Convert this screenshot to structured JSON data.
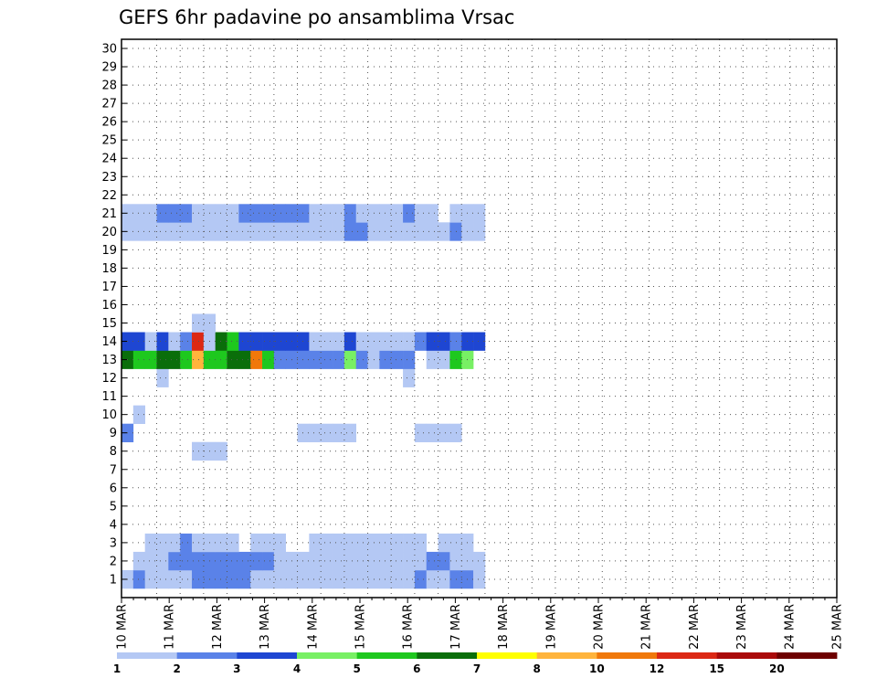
{
  "chart_data": {
    "type": "heatmap",
    "title": "GEFS 6hr padavine po ansamblima Vrsac",
    "xlabel": "",
    "ylabel": "",
    "x_tick_labels": [
      "10 MAR",
      "11 MAR",
      "12 MAR",
      "13 MAR",
      "14 MAR",
      "15 MAR",
      "16 MAR",
      "17 MAR",
      "18 MAR",
      "19 MAR",
      "20 MAR",
      "21 MAR",
      "22 MAR",
      "23 MAR",
      "24 MAR",
      "25 MAR"
    ],
    "y_tick_labels": [
      "1",
      "2",
      "3",
      "4",
      "5",
      "6",
      "7",
      "8",
      "9",
      "10",
      "11",
      "12",
      "13",
      "14",
      "15",
      "16",
      "17",
      "18",
      "19",
      "20",
      "21",
      "22",
      "23",
      "24",
      "25",
      "26",
      "27",
      "28",
      "29",
      "30"
    ],
    "time_steps": 61,
    "time_step_hours": 6,
    "members": 30,
    "colorbar": {
      "levels": [
        "1",
        "2",
        "3",
        "4",
        "5",
        "6",
        "7",
        "8",
        "10",
        "12",
        "15",
        "20"
      ],
      "colors": [
        "#b4c8f4",
        "#5a82e8",
        "#1e46d2",
        "#78f064",
        "#1ec81e",
        "#0a6e0a",
        "#ffff00",
        "#ffb43c",
        "#f0780a",
        "#dc2814",
        "#aa0a0a",
        "#6e0000"
      ]
    },
    "grid": true,
    "cells": [
      [
        0,
        1,
        0
      ],
      [
        1,
        1,
        1
      ],
      [
        2,
        1,
        0
      ],
      [
        3,
        1,
        0
      ],
      [
        4,
        1,
        0
      ],
      [
        5,
        1,
        0
      ],
      [
        6,
        1,
        1
      ],
      [
        7,
        1,
        1
      ],
      [
        8,
        1,
        1
      ],
      [
        9,
        1,
        1
      ],
      [
        10,
        1,
        1
      ],
      [
        11,
        1,
        0
      ],
      [
        12,
        1,
        0
      ],
      [
        13,
        1,
        0
      ],
      [
        14,
        1,
        0
      ],
      [
        15,
        1,
        0
      ],
      [
        16,
        1,
        0
      ],
      [
        17,
        1,
        0
      ],
      [
        18,
        1,
        0
      ],
      [
        19,
        1,
        0
      ],
      [
        20,
        1,
        0
      ],
      [
        21,
        1,
        0
      ],
      [
        22,
        1,
        0
      ],
      [
        23,
        1,
        0
      ],
      [
        24,
        1,
        0
      ],
      [
        25,
        1,
        1
      ],
      [
        26,
        1,
        0
      ],
      [
        27,
        1,
        0
      ],
      [
        28,
        1,
        1
      ],
      [
        29,
        1,
        1
      ],
      [
        30,
        1,
        0
      ],
      [
        1,
        2,
        0
      ],
      [
        2,
        2,
        0
      ],
      [
        3,
        2,
        0
      ],
      [
        4,
        2,
        1
      ],
      [
        5,
        2,
        1
      ],
      [
        6,
        2,
        1
      ],
      [
        7,
        2,
        1
      ],
      [
        8,
        2,
        1
      ],
      [
        9,
        2,
        1
      ],
      [
        10,
        2,
        1
      ],
      [
        11,
        2,
        1
      ],
      [
        12,
        2,
        1
      ],
      [
        13,
        2,
        0
      ],
      [
        14,
        2,
        0
      ],
      [
        15,
        2,
        0
      ],
      [
        16,
        2,
        0
      ],
      [
        17,
        2,
        0
      ],
      [
        18,
        2,
        0
      ],
      [
        19,
        2,
        0
      ],
      [
        20,
        2,
        0
      ],
      [
        21,
        2,
        0
      ],
      [
        22,
        2,
        0
      ],
      [
        23,
        2,
        0
      ],
      [
        24,
        2,
        0
      ],
      [
        25,
        2,
        0
      ],
      [
        26,
        2,
        1
      ],
      [
        27,
        2,
        1
      ],
      [
        28,
        2,
        0
      ],
      [
        29,
        2,
        0
      ],
      [
        30,
        2,
        0
      ],
      [
        2,
        3,
        0
      ],
      [
        3,
        3,
        0
      ],
      [
        4,
        3,
        0
      ],
      [
        5,
        3,
        1
      ],
      [
        6,
        3,
        0
      ],
      [
        7,
        3,
        0
      ],
      [
        8,
        3,
        0
      ],
      [
        9,
        3,
        0
      ],
      [
        11,
        3,
        0
      ],
      [
        12,
        3,
        0
      ],
      [
        13,
        3,
        0
      ],
      [
        16,
        3,
        0
      ],
      [
        17,
        3,
        0
      ],
      [
        18,
        3,
        0
      ],
      [
        19,
        3,
        0
      ],
      [
        20,
        3,
        0
      ],
      [
        21,
        3,
        0
      ],
      [
        22,
        3,
        0
      ],
      [
        23,
        3,
        0
      ],
      [
        24,
        3,
        0
      ],
      [
        25,
        3,
        0
      ],
      [
        27,
        3,
        0
      ],
      [
        28,
        3,
        0
      ],
      [
        29,
        3,
        0
      ],
      [
        6,
        8,
        0
      ],
      [
        7,
        8,
        0
      ],
      [
        8,
        8,
        0
      ],
      [
        0,
        9,
        1
      ],
      [
        15,
        9,
        0
      ],
      [
        16,
        9,
        0
      ],
      [
        17,
        9,
        0
      ],
      [
        18,
        9,
        0
      ],
      [
        19,
        9,
        0
      ],
      [
        25,
        9,
        0
      ],
      [
        26,
        9,
        0
      ],
      [
        27,
        9,
        0
      ],
      [
        28,
        9,
        0
      ],
      [
        1,
        10,
        0
      ],
      [
        3,
        12,
        0
      ],
      [
        24,
        12,
        0
      ],
      [
        0,
        13,
        5
      ],
      [
        1,
        13,
        4
      ],
      [
        2,
        13,
        4
      ],
      [
        3,
        13,
        5
      ],
      [
        4,
        13,
        5
      ],
      [
        5,
        13,
        4
      ],
      [
        6,
        13,
        7
      ],
      [
        7,
        13,
        4
      ],
      [
        8,
        13,
        4
      ],
      [
        9,
        13,
        5
      ],
      [
        10,
        13,
        5
      ],
      [
        11,
        13,
        8
      ],
      [
        12,
        13,
        4
      ],
      [
        13,
        13,
        1
      ],
      [
        14,
        13,
        1
      ],
      [
        15,
        13,
        1
      ],
      [
        16,
        13,
        1
      ],
      [
        17,
        13,
        1
      ],
      [
        18,
        13,
        1
      ],
      [
        19,
        13,
        3
      ],
      [
        20,
        13,
        1
      ],
      [
        21,
        13,
        0
      ],
      [
        22,
        13,
        1
      ],
      [
        23,
        13,
        1
      ],
      [
        24,
        13,
        1
      ],
      [
        26,
        13,
        0
      ],
      [
        27,
        13,
        0
      ],
      [
        28,
        13,
        4
      ],
      [
        29,
        13,
        3
      ],
      [
        0,
        14,
        2
      ],
      [
        1,
        14,
        2
      ],
      [
        2,
        14,
        0
      ],
      [
        3,
        14,
        2
      ],
      [
        4,
        14,
        0
      ],
      [
        5,
        14,
        1
      ],
      [
        6,
        14,
        9
      ],
      [
        7,
        14,
        0
      ],
      [
        8,
        14,
        5
      ],
      [
        9,
        14,
        4
      ],
      [
        10,
        14,
        2
      ],
      [
        11,
        14,
        2
      ],
      [
        12,
        14,
        2
      ],
      [
        13,
        14,
        2
      ],
      [
        14,
        14,
        2
      ],
      [
        15,
        14,
        2
      ],
      [
        16,
        14,
        0
      ],
      [
        17,
        14,
        0
      ],
      [
        18,
        14,
        0
      ],
      [
        19,
        14,
        2
      ],
      [
        20,
        14,
        0
      ],
      [
        21,
        14,
        0
      ],
      [
        22,
        14,
        0
      ],
      [
        23,
        14,
        0
      ],
      [
        24,
        14,
        0
      ],
      [
        25,
        14,
        1
      ],
      [
        26,
        14,
        2
      ],
      [
        27,
        14,
        2
      ],
      [
        28,
        14,
        1
      ],
      [
        29,
        14,
        2
      ],
      [
        30,
        14,
        2
      ],
      [
        6,
        15,
        0
      ],
      [
        7,
        15,
        0
      ],
      [
        0,
        20,
        0
      ],
      [
        1,
        20,
        0
      ],
      [
        2,
        20,
        0
      ],
      [
        3,
        20,
        0
      ],
      [
        4,
        20,
        0
      ],
      [
        5,
        20,
        0
      ],
      [
        6,
        20,
        0
      ],
      [
        7,
        20,
        0
      ],
      [
        8,
        20,
        0
      ],
      [
        9,
        20,
        0
      ],
      [
        10,
        20,
        0
      ],
      [
        11,
        20,
        0
      ],
      [
        12,
        20,
        0
      ],
      [
        13,
        20,
        0
      ],
      [
        14,
        20,
        0
      ],
      [
        15,
        20,
        0
      ],
      [
        16,
        20,
        0
      ],
      [
        17,
        20,
        0
      ],
      [
        18,
        20,
        0
      ],
      [
        19,
        20,
        1
      ],
      [
        20,
        20,
        1
      ],
      [
        21,
        20,
        0
      ],
      [
        22,
        20,
        0
      ],
      [
        23,
        20,
        0
      ],
      [
        24,
        20,
        0
      ],
      [
        25,
        20,
        0
      ],
      [
        26,
        20,
        0
      ],
      [
        27,
        20,
        0
      ],
      [
        28,
        20,
        1
      ],
      [
        29,
        20,
        0
      ],
      [
        30,
        20,
        0
      ],
      [
        0,
        21,
        0
      ],
      [
        1,
        21,
        0
      ],
      [
        2,
        21,
        0
      ],
      [
        3,
        21,
        1
      ],
      [
        4,
        21,
        1
      ],
      [
        5,
        21,
        1
      ],
      [
        6,
        21,
        0
      ],
      [
        7,
        21,
        0
      ],
      [
        8,
        21,
        0
      ],
      [
        9,
        21,
        0
      ],
      [
        10,
        21,
        1
      ],
      [
        11,
        21,
        1
      ],
      [
        12,
        21,
        1
      ],
      [
        13,
        21,
        1
      ],
      [
        14,
        21,
        1
      ],
      [
        15,
        21,
        1
      ],
      [
        16,
        21,
        0
      ],
      [
        17,
        21,
        0
      ],
      [
        18,
        21,
        0
      ],
      [
        19,
        21,
        1
      ],
      [
        20,
        21,
        0
      ],
      [
        21,
        21,
        0
      ],
      [
        22,
        21,
        0
      ],
      [
        23,
        21,
        0
      ],
      [
        24,
        21,
        1
      ],
      [
        25,
        21,
        0
      ],
      [
        26,
        21,
        0
      ],
      [
        28,
        21,
        0
      ],
      [
        29,
        21,
        0
      ],
      [
        30,
        21,
        0
      ]
    ]
  }
}
